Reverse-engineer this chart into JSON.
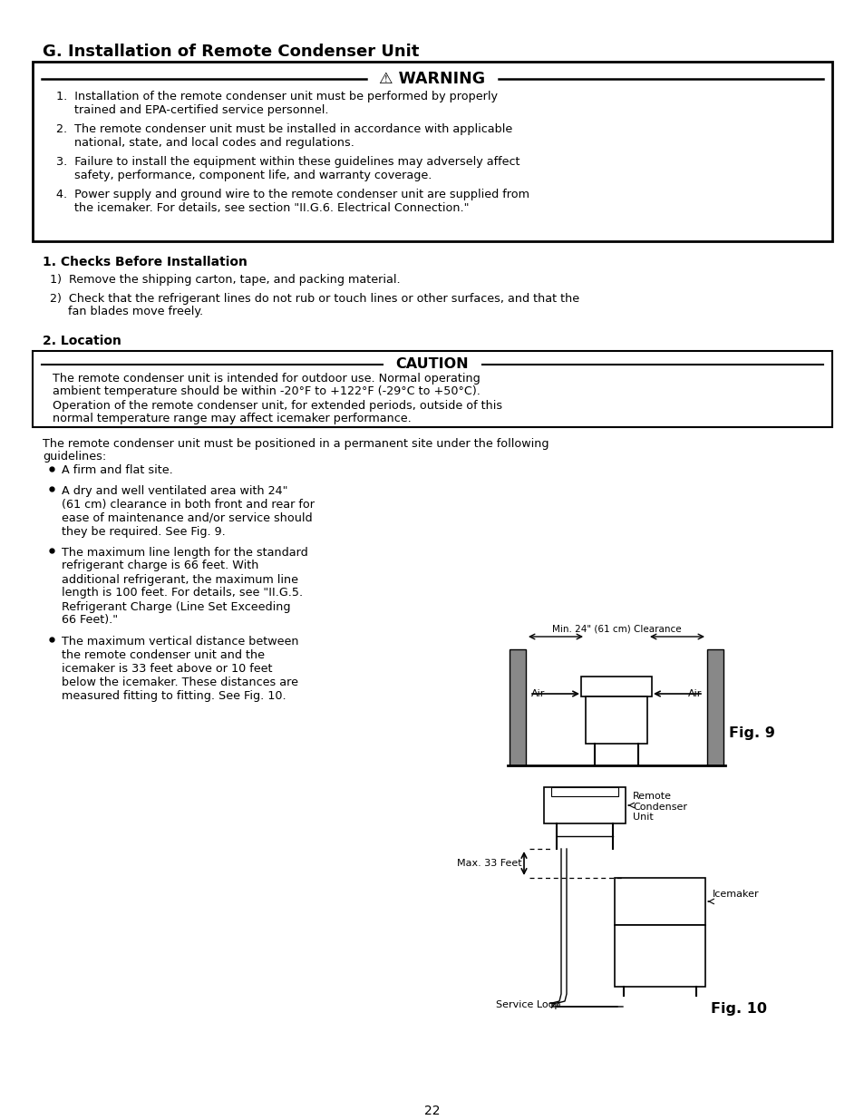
{
  "title": "G. Installation of Remote Condenser Unit",
  "warning_header": "⚠ WARNING",
  "warning_items": [
    "1.  Installation of the remote condenser unit must be performed by properly\n     trained and EPA-certified service personnel.",
    "2.  The remote condenser unit must be installed in accordance with applicable\n     national, state, and local codes and regulations.",
    "3.  Failure to install the equipment within these guidelines may adversely affect\n     safety, performance, component life, and warranty coverage.",
    "4.  Power supply and ground wire to the remote condenser unit are supplied from\n     the icemaker. For details, see section \"II.G.6. Electrical Connection.\""
  ],
  "section1_title": "1. Checks Before Installation",
  "checks_items": [
    "1)  Remove the shipping carton, tape, and packing material.",
    "2)  Check that the refrigerant lines do not rub or touch lines or other surfaces, and that the\n     fan blades move freely."
  ],
  "section2_title": "2. Location",
  "caution_header": "CAUTION",
  "caution_text": "The remote condenser unit is intended for outdoor use. Normal operating\nambient temperature should be within -20°F to +122°F (-29°C to +50°C).\nOperation of the remote condenser unit, for extended periods, outside of this\nnormal temperature range may affect icemaker performance.",
  "location_intro": "The remote condenser unit must be positioned in a permanent site under the following\nguidelines:",
  "location_bullets": [
    "A firm and flat site.",
    "A dry and well ventilated area with 24\"\n(61 cm) clearance in both front and rear for\nease of maintenance and/or service should\nthey be required. See Fig. 9.",
    "The maximum line length for the standard\nrefrigerant charge is 66 feet. With\nadditional refrigerant, the maximum line\nlength is 100 feet. For details, see \"II.G.5.\nRefrigerant Charge (Line Set Exceeding\n66 Feet).\"",
    "The maximum vertical distance between\nthe remote condenser unit and the\nicemaker is 33 feet above or 10 feet\nbelow the icemaker. These distances are\nmeasured fitting to fitting. See Fig. 10."
  ],
  "fig9_label": "Fig. 9",
  "fig10_label": "Fig. 10",
  "page_number": "22",
  "bg_color": "#ffffff",
  "text_color": "#000000"
}
